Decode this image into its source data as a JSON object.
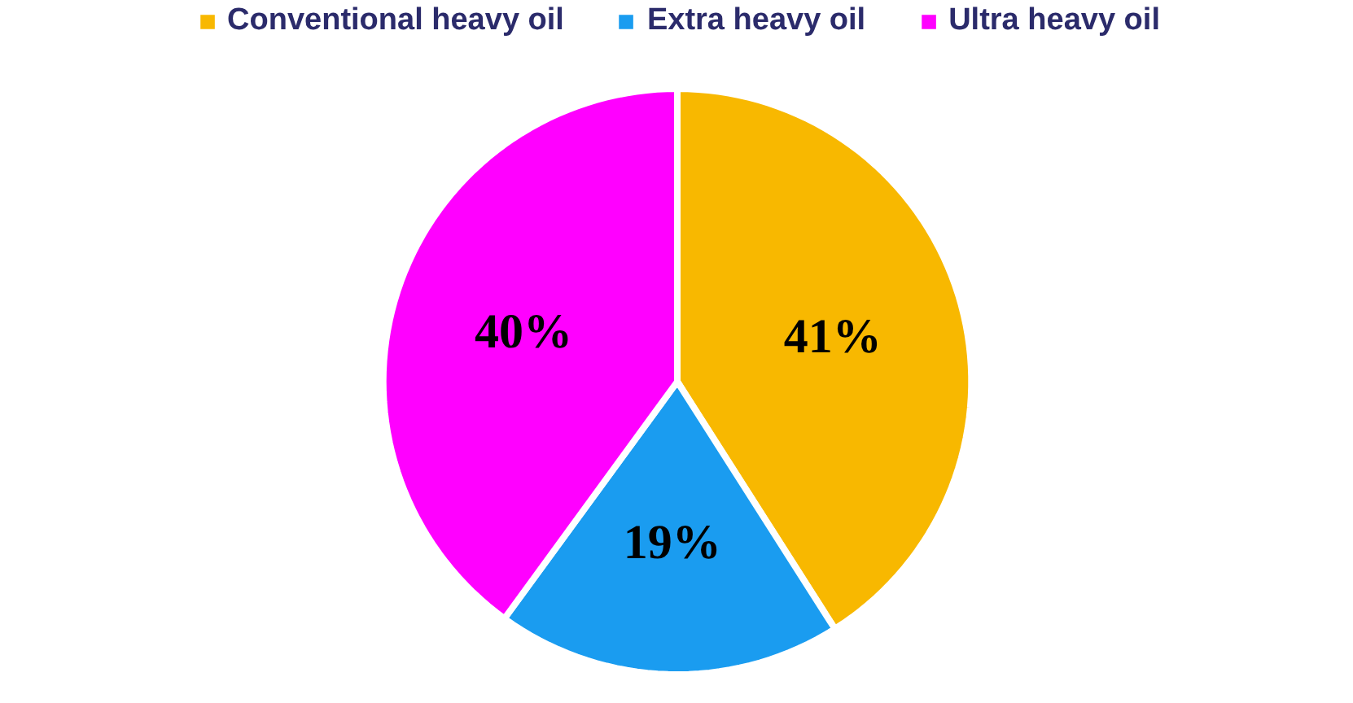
{
  "chart_data": {
    "type": "pie",
    "categories": [
      "Conventional heavy oil",
      "Extra heavy oil",
      "Ultra heavy oil"
    ],
    "values": [
      41,
      19,
      40
    ],
    "colors": [
      "#f8b800",
      "#1a9cf0",
      "#ff00ff"
    ],
    "value_labels": [
      "41%",
      "19%",
      "40%"
    ],
    "legend": "top"
  }
}
